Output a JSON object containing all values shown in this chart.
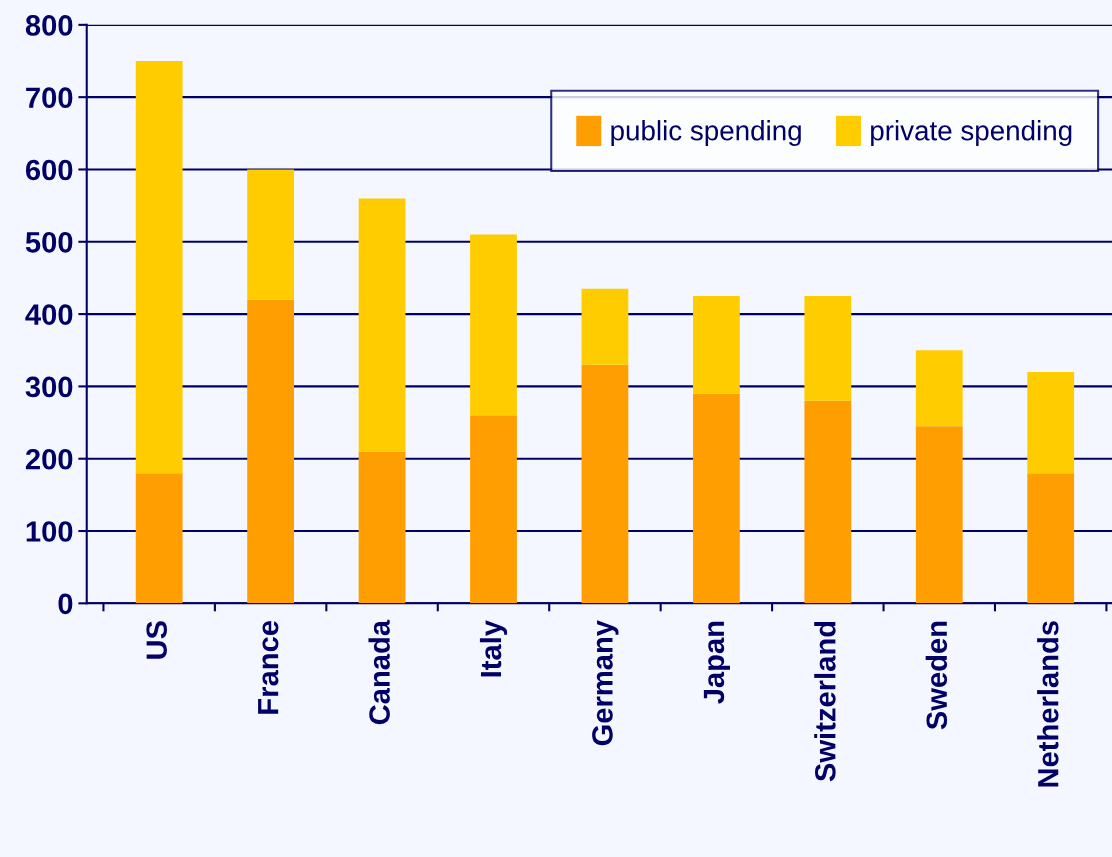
{
  "chart_data": {
    "type": "bar",
    "stacked": true,
    "categories": [
      "US",
      "France",
      "Canada",
      "Italy",
      "Germany",
      "Japan",
      "Switzerland",
      "Sweden",
      "Netherlands"
    ],
    "series": [
      {
        "name": "public spending",
        "color": "#ff9e00",
        "values": [
          180,
          420,
          210,
          260,
          330,
          290,
          280,
          245,
          180
        ]
      },
      {
        "name": "private spending",
        "color": "#ffcc00",
        "values": [
          570,
          180,
          350,
          250,
          105,
          135,
          145,
          105,
          140
        ]
      }
    ],
    "ylim": [
      0,
      800
    ],
    "yticks": [
      0,
      100,
      200,
      300,
      400,
      500,
      600,
      700,
      800
    ],
    "grid": "y",
    "legend": "top right"
  }
}
